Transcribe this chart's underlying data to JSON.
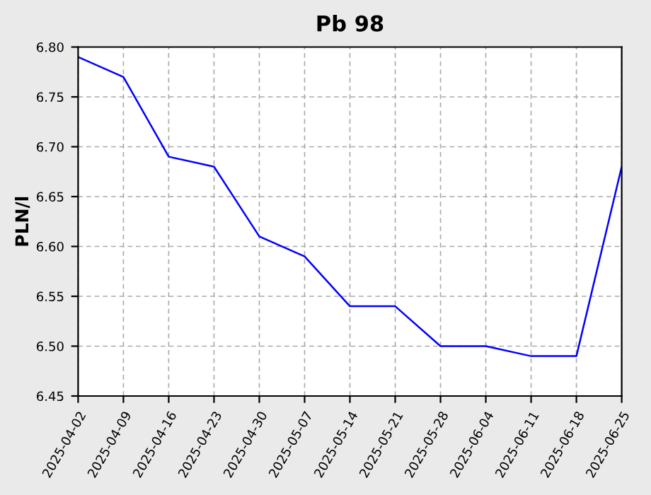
{
  "chart_data": {
    "type": "line",
    "title": "Pb 98",
    "ylabel": "PLN/l",
    "categories": [
      "2025-04-02",
      "2025-04-09",
      "2025-04-16",
      "2025-04-23",
      "2025-04-30",
      "2025-05-07",
      "2025-05-14",
      "2025-05-21",
      "2025-05-28",
      "2025-06-04",
      "2025-06-11",
      "2025-06-18",
      "2025-06-25"
    ],
    "series": [
      {
        "color": "#0000ff",
        "values": [
          6.79,
          6.77,
          6.69,
          6.68,
          6.61,
          6.59,
          6.54,
          6.54,
          6.5,
          6.5,
          6.49,
          6.49,
          6.68
        ]
      }
    ],
    "ylim": [
      6.45,
      6.8
    ],
    "yticks": [
      {
        "value": 6.45,
        "label": "6.45"
      },
      {
        "value": 6.5,
        "label": "6.50"
      },
      {
        "value": 6.55,
        "label": "6.55"
      },
      {
        "value": 6.6,
        "label": "6.60"
      },
      {
        "value": 6.65,
        "label": "6.65"
      },
      {
        "value": 6.7,
        "label": "6.70"
      },
      {
        "value": 6.75,
        "label": "6.75"
      },
      {
        "value": 6.8,
        "label": "6.80"
      }
    ],
    "grid": true,
    "marker": "none",
    "line_style": "solid"
  }
}
